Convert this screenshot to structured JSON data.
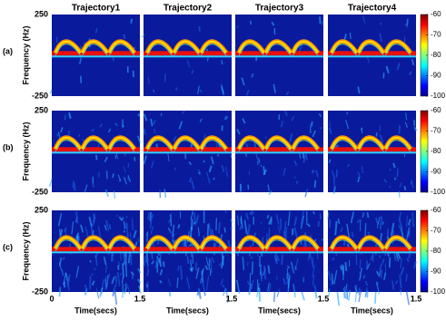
{
  "chart_data": {
    "type": "heatmap",
    "column_titles": [
      "Trajectory1",
      "Trajectory2",
      "Trajectory3",
      "Trajectory4"
    ],
    "row_labels": [
      "(a)",
      "(b)",
      "(c)"
    ],
    "y_label": "Frequency (Hz)",
    "x_label": "Time(secs)",
    "xlim": [
      0,
      1.5
    ],
    "xticks": [
      0,
      1.5
    ],
    "ylim": [
      -250,
      250
    ],
    "yticks": [
      -250,
      250
    ],
    "colorbar": {
      "lim": [
        -100,
        -60
      ],
      "ticks": [
        -100,
        -90,
        -80,
        -70,
        -60
      ]
    }
  }
}
